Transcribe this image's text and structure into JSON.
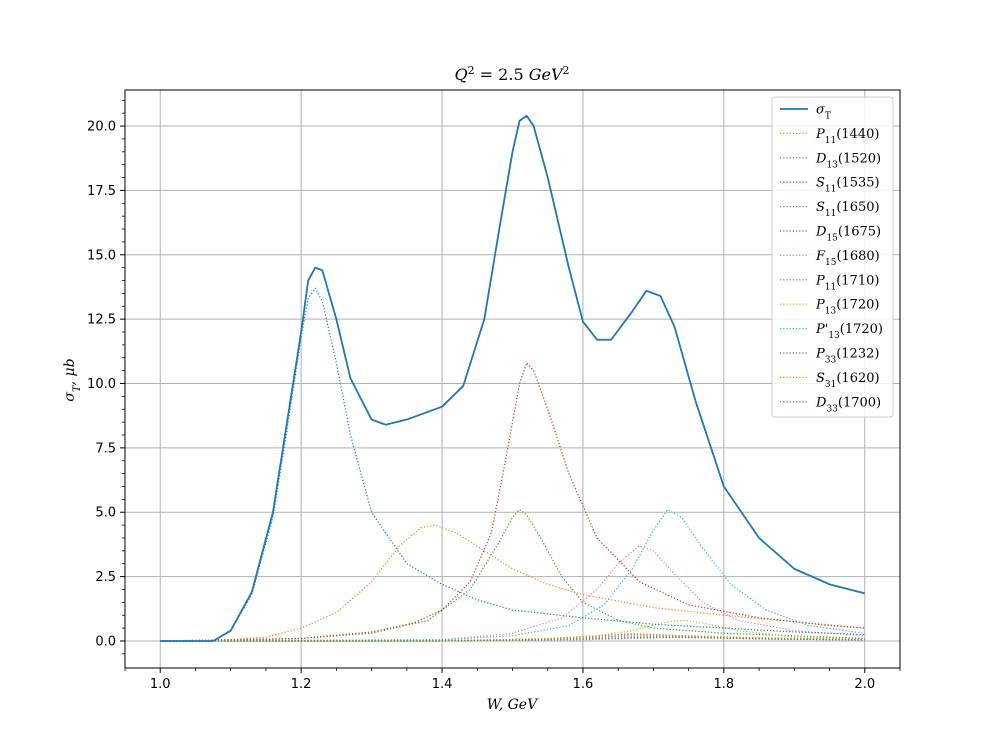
{
  "chart_data": {
    "type": "line",
    "title": "Q^2 = 2.5 GeV^2",
    "title_parts": {
      "q": "Q",
      "q_sup": "2",
      "eq": " = 2.5 ",
      "unit": "GeV",
      "unit_sup": "2"
    },
    "xlabel": "W, GeV",
    "ylabel": "σ_T, μb",
    "ylabel_parts": {
      "sym": "σ",
      "sub": "T",
      "rest": ", μb"
    },
    "xlim": [
      0.95,
      2.05
    ],
    "ylim": [
      -1.05,
      21.4
    ],
    "xticks": [
      1.0,
      1.2,
      1.4,
      1.6,
      1.8,
      2.0
    ],
    "xtick_labels": [
      "1.0",
      "1.2",
      "1.4",
      "1.6",
      "1.8",
      "2.0"
    ],
    "yticks": [
      0.0,
      2.5,
      5.0,
      7.5,
      10.0,
      12.5,
      15.0,
      17.5,
      20.0
    ],
    "ytick_labels": [
      "0.0",
      "2.5",
      "5.0",
      "7.5",
      "10.0",
      "12.5",
      "15.0",
      "17.5",
      "20.0"
    ],
    "grid": true,
    "legend_position": "top-right",
    "series": [
      {
        "name": "σT",
        "label_main": "σ",
        "label_sub": "T",
        "label_rest": "",
        "style": "solid",
        "color": "#1f77b4",
        "x": [
          1.0,
          1.075,
          1.1,
          1.13,
          1.16,
          1.18,
          1.2,
          1.21,
          1.22,
          1.23,
          1.25,
          1.27,
          1.3,
          1.32,
          1.35,
          1.4,
          1.43,
          1.46,
          1.48,
          1.5,
          1.51,
          1.52,
          1.53,
          1.55,
          1.58,
          1.6,
          1.62,
          1.64,
          1.67,
          1.69,
          1.71,
          1.73,
          1.76,
          1.8,
          1.85,
          1.9,
          1.95,
          2.0
        ],
        "y": [
          0,
          0,
          0.4,
          1.9,
          5.0,
          8.5,
          12.0,
          14.0,
          14.5,
          14.4,
          12.5,
          10.2,
          8.6,
          8.4,
          8.6,
          9.1,
          9.9,
          12.5,
          15.8,
          19.0,
          20.2,
          20.4,
          20.0,
          18.0,
          14.5,
          12.4,
          11.7,
          11.7,
          12.8,
          13.6,
          13.4,
          12.2,
          9.3,
          6.0,
          4.0,
          2.8,
          2.2,
          1.85
        ]
      },
      {
        "name": "P11(1440)",
        "label_main": "P",
        "label_sub": "11",
        "label_rest": "(1440)",
        "style": "dotted",
        "color": "#ff7f0e",
        "x": [
          1.0,
          1.1,
          1.15,
          1.2,
          1.25,
          1.3,
          1.34,
          1.37,
          1.39,
          1.42,
          1.46,
          1.5,
          1.55,
          1.6,
          1.7,
          1.8,
          1.9,
          2.0
        ],
        "y": [
          0,
          0.05,
          0.15,
          0.5,
          1.1,
          2.3,
          3.7,
          4.4,
          4.5,
          4.2,
          3.5,
          2.8,
          2.2,
          1.8,
          1.3,
          1.0,
          0.75,
          0.5
        ]
      },
      {
        "name": "D13(1520)",
        "label_main": "D",
        "label_sub": "13",
        "label_rest": "(1520)",
        "style": "dotted",
        "color": "#2ca02c",
        "x": [
          1.0,
          1.1,
          1.2,
          1.3,
          1.38,
          1.44,
          1.48,
          1.5,
          1.51,
          1.52,
          1.54,
          1.57,
          1.6,
          1.65,
          1.7,
          1.8,
          1.9,
          2.0
        ],
        "y": [
          0,
          0.02,
          0.1,
          0.3,
          0.8,
          2.0,
          3.8,
          4.8,
          5.1,
          4.9,
          4.0,
          2.5,
          1.5,
          0.8,
          0.5,
          0.3,
          0.2,
          0.1
        ]
      },
      {
        "name": "S11(1535)",
        "label_main": "S",
        "label_sub": "11",
        "label_rest": "(1535)",
        "style": "dotted",
        "color": "#d62728",
        "x": [
          1.0,
          1.1,
          1.2,
          1.3,
          1.36,
          1.4,
          1.44,
          1.47,
          1.49,
          1.51,
          1.52,
          1.53,
          1.55,
          1.58,
          1.62,
          1.68,
          1.75,
          1.85,
          1.95,
          2.0
        ],
        "y": [
          0,
          0.05,
          0.1,
          0.35,
          0.7,
          1.2,
          2.3,
          4.2,
          7.0,
          10.0,
          10.8,
          10.5,
          9.0,
          6.5,
          4.0,
          2.3,
          1.4,
          0.9,
          0.6,
          0.5
        ]
      },
      {
        "name": "S11(1650)",
        "label_main": "S",
        "label_sub": "11",
        "label_rest": "(1650)",
        "style": "dotted",
        "color": "#9467bd",
        "x": [
          1.0,
          1.3,
          1.5,
          1.6,
          1.65,
          1.7,
          1.8,
          1.9,
          2.0
        ],
        "y": [
          0,
          0.0,
          0.05,
          0.12,
          0.18,
          0.2,
          0.15,
          0.1,
          0.07
        ]
      },
      {
        "name": "D15(1675)",
        "label_main": "D",
        "label_sub": "15",
        "label_rest": "(1675)",
        "style": "dotted",
        "color": "#8c564b",
        "x": [
          1.0,
          1.4,
          1.55,
          1.62,
          1.67,
          1.7,
          1.76,
          1.85,
          2.0
        ],
        "y": [
          0,
          0.0,
          0.08,
          0.2,
          0.28,
          0.25,
          0.15,
          0.08,
          0.04
        ]
      },
      {
        "name": "F15(1680)",
        "label_main": "F",
        "label_sub": "15",
        "label_rest": "(1680)",
        "style": "dotted",
        "color": "#e377c2",
        "x": [
          1.0,
          1.4,
          1.5,
          1.57,
          1.62,
          1.65,
          1.68,
          1.7,
          1.73,
          1.77,
          1.82,
          1.9,
          2.0
        ],
        "y": [
          0,
          0.05,
          0.3,
          0.9,
          2.0,
          3.0,
          3.7,
          3.5,
          2.6,
          1.5,
          0.8,
          0.4,
          0.2
        ]
      },
      {
        "name": "P11(1710)",
        "label_main": "P",
        "label_sub": "11",
        "label_rest": "(1710)",
        "style": "dotted",
        "color": "#7f7f7f",
        "x": [
          1.0,
          1.4,
          1.6,
          1.7,
          1.75,
          1.8,
          1.9,
          2.0
        ],
        "y": [
          0,
          0.0,
          0.05,
          0.12,
          0.15,
          0.12,
          0.07,
          0.04
        ]
      },
      {
        "name": "P13(1720)",
        "label_main": "P",
        "label_sub": "13",
        "label_rest": "(1720)",
        "style": "dotted",
        "color": "#bcbd22",
        "x": [
          1.0,
          1.5,
          1.6,
          1.67,
          1.72,
          1.745,
          1.77,
          1.82,
          1.9,
          2.0
        ],
        "y": [
          0,
          0.02,
          0.12,
          0.4,
          0.75,
          0.8,
          0.7,
          0.4,
          0.15,
          0.06
        ]
      },
      {
        "name": "P'13(1720)",
        "label_main": "P'",
        "label_sub": "13",
        "label_rest": "(1720)",
        "style": "dotted",
        "color": "#17becf",
        "x": [
          1.0,
          1.4,
          1.5,
          1.58,
          1.63,
          1.67,
          1.7,
          1.72,
          1.74,
          1.77,
          1.81,
          1.86,
          1.92,
          2.0
        ],
        "y": [
          0,
          0.05,
          0.2,
          0.6,
          1.4,
          2.8,
          4.3,
          5.1,
          4.8,
          3.6,
          2.2,
          1.2,
          0.6,
          0.3
        ]
      },
      {
        "name": "P33(1232)",
        "label_main": "P",
        "label_sub": "33",
        "label_rest": "(1232)",
        "style": "dotted",
        "color": "#1f77b4",
        "x": [
          1.0,
          1.075,
          1.1,
          1.13,
          1.16,
          1.18,
          1.2,
          1.21,
          1.22,
          1.23,
          1.25,
          1.27,
          1.3,
          1.35,
          1.4,
          1.45,
          1.5,
          1.6,
          1.7,
          1.8,
          1.9,
          2.0
        ],
        "y": [
          0,
          0,
          0.4,
          1.8,
          4.8,
          8.2,
          11.8,
          13.3,
          13.7,
          13.2,
          10.8,
          8.0,
          5.0,
          3.0,
          2.2,
          1.6,
          1.2,
          0.9,
          0.65,
          0.5,
          0.35,
          0.25
        ]
      },
      {
        "name": "S31(1620)",
        "label_main": "S",
        "label_sub": "31",
        "label_rest": "(1620)",
        "style": "dotted",
        "color": "#ff7f0e",
        "x": [
          1.0,
          1.4,
          1.55,
          1.62,
          1.68,
          1.75,
          1.85,
          2.0
        ],
        "y": [
          0,
          0.0,
          0.1,
          0.2,
          0.25,
          0.2,
          0.12,
          0.06
        ]
      },
      {
        "name": "D33(1700)",
        "label_main": "D",
        "label_sub": "33",
        "label_rest": "(1700)",
        "style": "dotted",
        "color": "#2ca02c",
        "x": [
          1.0,
          1.4,
          1.55,
          1.65,
          1.7,
          1.75,
          1.85,
          2.0
        ],
        "y": [
          0,
          0.0,
          0.05,
          0.12,
          0.15,
          0.13,
          0.08,
          0.04
        ]
      }
    ]
  }
}
